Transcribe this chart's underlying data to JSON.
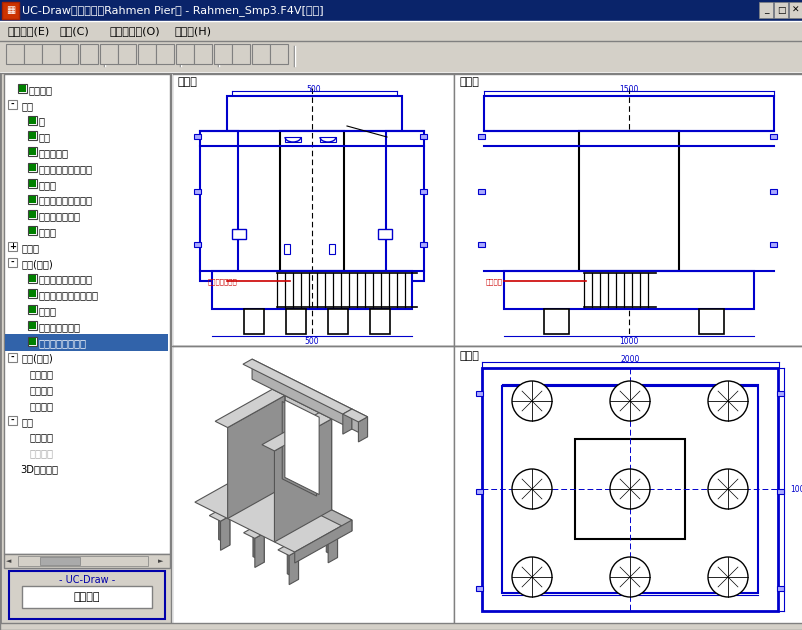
{
  "title_bar": "UC-Drawツールズ（Rahmen Pier） - Rahmen_Smp3.F4V[更新]",
  "menu_items": [
    "ファイル(E)",
    "条件(C)",
    "オプション(O)",
    "ヘルプ(H)"
  ],
  "tree_items": [
    {
      "text": "基本情報",
      "checked": true,
      "has_check": true,
      "indent": 1,
      "expandable": false
    },
    {
      "text": "形状",
      "checked": false,
      "has_check": false,
      "indent": 0,
      "expandable": true,
      "expanded": true
    },
    {
      "text": "柱",
      "checked": true,
      "has_check": true,
      "indent": 2
    },
    {
      "text": "はり",
      "checked": true,
      "has_check": true,
      "indent": 2
    },
    {
      "text": "フーチング",
      "checked": true,
      "has_check": true,
      "indent": 2
    },
    {
      "text": "支承アンカーボルト",
      "checked": true,
      "has_check": true,
      "indent": 2
    },
    {
      "text": "捧配置",
      "checked": true,
      "has_check": true,
      "indent": 2
    },
    {
      "text": "はりの縦断面図位置",
      "checked": true,
      "has_check": true,
      "indent": 2
    },
    {
      "text": "柱の断面図位置",
      "checked": true,
      "has_check": true,
      "indent": 2
    },
    {
      "text": "基礎材",
      "checked": true,
      "has_check": true,
      "indent": 2
    },
    {
      "text": "かぶり",
      "checked": false,
      "has_check": false,
      "indent": 0,
      "expandable": true,
      "expanded": false
    },
    {
      "text": "鉄筋(簡易)",
      "checked": false,
      "has_check": false,
      "indent": 0,
      "expandable": true,
      "expanded": true
    },
    {
      "text": "はり主鉄筋・側面筋",
      "checked": true,
      "has_check": true,
      "indent": 2
    },
    {
      "text": "はりスターラップ・帯",
      "checked": true,
      "has_check": true,
      "indent": 2
    },
    {
      "text": "柱鉄筋",
      "checked": true,
      "has_check": true,
      "indent": 2
    },
    {
      "text": "フーチング鉄筋",
      "checked": true,
      "has_check": true,
      "indent": 2
    },
    {
      "text": "曲げ長・継ぎ手長",
      "checked": true,
      "has_check": true,
      "indent": 2,
      "selected": true
    },
    {
      "text": "鉄筋(詳細)",
      "checked": false,
      "has_check": false,
      "indent": 0,
      "expandable": true,
      "expanded": true
    },
    {
      "text": "鉄筋生成",
      "checked": false,
      "has_check": false,
      "indent": 2
    },
    {
      "text": "鉄筋入力",
      "checked": false,
      "has_check": false,
      "indent": 2
    },
    {
      "text": "鉄筋一覧",
      "checked": false,
      "has_check": false,
      "indent": 2
    },
    {
      "text": "図面",
      "checked": false,
      "has_check": false,
      "indent": 0,
      "expandable": true,
      "expanded": true
    },
    {
      "text": "図面生成",
      "checked": false,
      "has_check": false,
      "indent": 2
    },
    {
      "text": "図面確認",
      "checked": false,
      "has_check": false,
      "indent": 2,
      "grayed": true
    },
    {
      "text": "3D配筋生成",
      "checked": false,
      "has_check": false,
      "indent": 1
    }
  ],
  "blue": "#0000cc",
  "red": "#cc0000",
  "black": "#000000",
  "dgray": "#555555",
  "mgray": "#888888",
  "lgray": "#bbbbbb",
  "vlgray": "#d8d8d8",
  "white": "#ffffff"
}
